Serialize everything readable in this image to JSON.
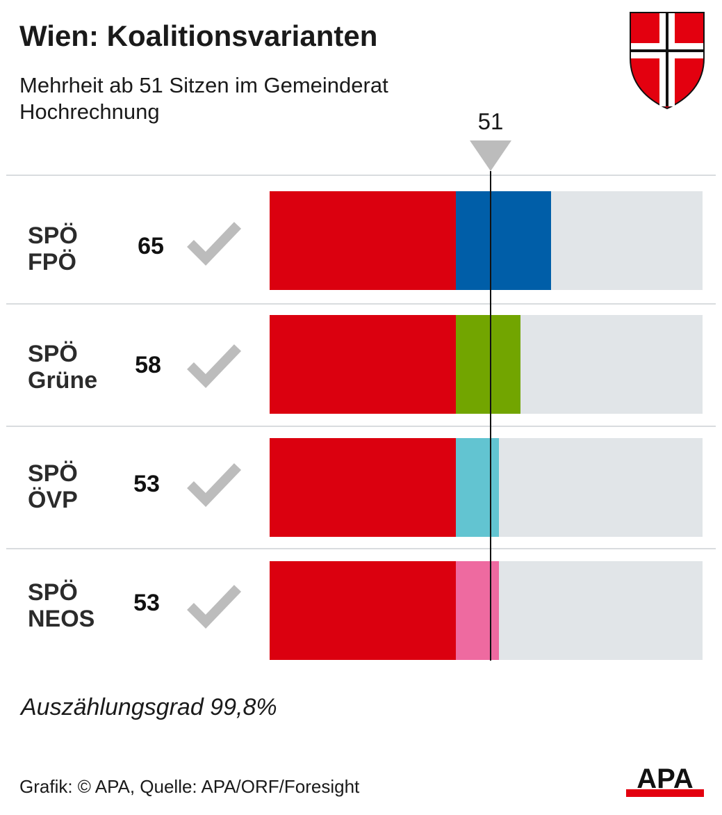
{
  "chart_data": {
    "type": "bar",
    "title": "Wien: Koalitionsvarianten",
    "subtitle_lines": [
      "Mehrheit ab 51 Sitzen im Gemeinderat",
      "Hochrechnung"
    ],
    "threshold": {
      "value": 51,
      "label": "51"
    },
    "xlim": [
      0,
      100
    ],
    "bars": [
      {
        "id": "spoe-fpoe",
        "label_lines": [
          "SPÖ",
          "FPÖ"
        ],
        "total": 65,
        "total_label": "65",
        "majority": true,
        "segments": [
          {
            "party": "SPÖ",
            "value": 43,
            "color": "#db000f"
          },
          {
            "party": "FPÖ",
            "value": 22,
            "color": "#005ea8"
          }
        ]
      },
      {
        "id": "spoe-gruene",
        "label_lines": [
          "SPÖ",
          "Grüne"
        ],
        "total": 58,
        "total_label": "58",
        "majority": true,
        "segments": [
          {
            "party": "SPÖ",
            "value": 43,
            "color": "#db000f"
          },
          {
            "party": "Grüne",
            "value": 15,
            "color": "#72a500"
          }
        ]
      },
      {
        "id": "spoe-oevp",
        "label_lines": [
          "SPÖ",
          "ÖVP"
        ],
        "total": 53,
        "total_label": "53",
        "majority": true,
        "segments": [
          {
            "party": "SPÖ",
            "value": 43,
            "color": "#db000f"
          },
          {
            "party": "ÖVP",
            "value": 10,
            "color": "#62c4d1"
          }
        ]
      },
      {
        "id": "spoe-neos",
        "label_lines": [
          "SPÖ",
          "NEOS"
        ],
        "total": 53,
        "total_label": "53",
        "majority": true,
        "segments": [
          {
            "party": "SPÖ",
            "value": 43,
            "color": "#db000f"
          },
          {
            "party": "NEOS",
            "value": 10,
            "color": "#ee6aa0"
          }
        ]
      }
    ],
    "footnote": "Auszählungsgrad 99,8%"
  },
  "source": "Grafik: © APA, Quelle: APA/ORF/Foresight",
  "logo_text": "APA",
  "colors": {
    "track": "#e1e5e8",
    "check": "#bcbcbc",
    "rule": "#d9dcdf",
    "crest_red": "#e3000f"
  }
}
